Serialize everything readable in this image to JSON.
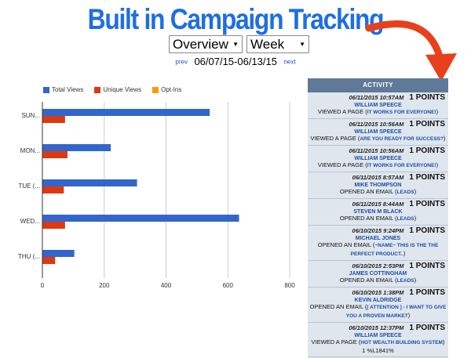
{
  "header": {
    "title": "Built in Campaign Tracking"
  },
  "controls": {
    "view": {
      "selected": "Overview"
    },
    "period": {
      "selected": "Week"
    }
  },
  "range": {
    "prev_label": "prev",
    "text": "06/07/15-06/13/15",
    "next_label": "next"
  },
  "chart_data": {
    "type": "bar",
    "orientation": "horizontal",
    "categories": [
      "SUN...",
      "MON...",
      "TUE (...",
      "WED...",
      "THU (..."
    ],
    "series": [
      {
        "name": "Total Views",
        "color": "#3366cc",
        "values": [
          540,
          220,
          305,
          635,
          102
        ]
      },
      {
        "name": "Unique Views",
        "color": "#dc3912",
        "values": [
          72,
          80,
          68,
          72,
          40
        ]
      },
      {
        "name": "Opt-Ins",
        "color": "#ff9900",
        "values": [
          0,
          0,
          0,
          0,
          0
        ]
      }
    ],
    "xlim": [
      0,
      800
    ],
    "xticks": [
      0,
      200,
      400,
      600,
      800
    ],
    "grid": true,
    "legend": "top-left"
  },
  "activity": {
    "title": "ACTIVITY",
    "entries": [
      {
        "date": "06/11/2015 10:57AM",
        "points": "1 POINTS",
        "name": "WILLIAM SPEECE",
        "action": "VIEWED A PAGE",
        "link": "IT WORKS FOR EVERYONE!"
      },
      {
        "date": "06/11/2015 10:56AM",
        "points": "1 POINTS",
        "name": "WILLIAM SPEECE",
        "action": "VIEWED A PAGE",
        "link": "ARE YOU READY FOR SUCCESS?"
      },
      {
        "date": "06/11/2015 10:56AM",
        "points": "1 POINTS",
        "name": "WILLIAM SPEECE",
        "action": "VIEWED A PAGE",
        "link": "IT WORKS FOR EVERYONE!"
      },
      {
        "date": "06/11/2015 8:57AM",
        "points": "1 POINTS",
        "name": "MIKE THOMPSON",
        "action": "OPENED AN EMAIL",
        "link": "LEADS"
      },
      {
        "date": "06/11/2015 8:44AM",
        "points": "1 POINTS",
        "name": "STEVEN M BLACK",
        "action": "OPENED AN EMAIL",
        "link": "LEADS"
      },
      {
        "date": "06/10/2015 9:24PM",
        "points": "1 POINTS",
        "name": "MICHAEL JONES",
        "action": "OPENED AN EMAIL",
        "link": "~NAME~ THIS IS THE THE PERFECT PRODUCT.."
      },
      {
        "date": "06/10/2015 2:53PM",
        "points": "1 POINTS",
        "name": "JAMES COTTINGHAM",
        "action": "OPENED AN EMAIL",
        "link": "LEADS"
      },
      {
        "date": "06/10/2015 1:38PM",
        "points": "1 POINTS",
        "name": "KEVIN ALDRIDGE",
        "action": "OPENED AN EMAIL",
        "link": "[ ATTENTION ] - I WANT TO GIVE YOU A PROVEN MARKET"
      },
      {
        "date": "06/10/2015 12:37PM",
        "points": "1 POINTS",
        "name": "WILLIAM SPEECE",
        "action": "VIEWED A PAGE",
        "link": "HOT WEALTH BUILDING SYSTEM",
        "suffix": " 1 %L1841%"
      }
    ]
  },
  "colors": {
    "title": "#1e6fe0",
    "activity_header": "#5f7a99",
    "activity_bg": "#dfe6ee",
    "arrow": "#e8401c"
  }
}
